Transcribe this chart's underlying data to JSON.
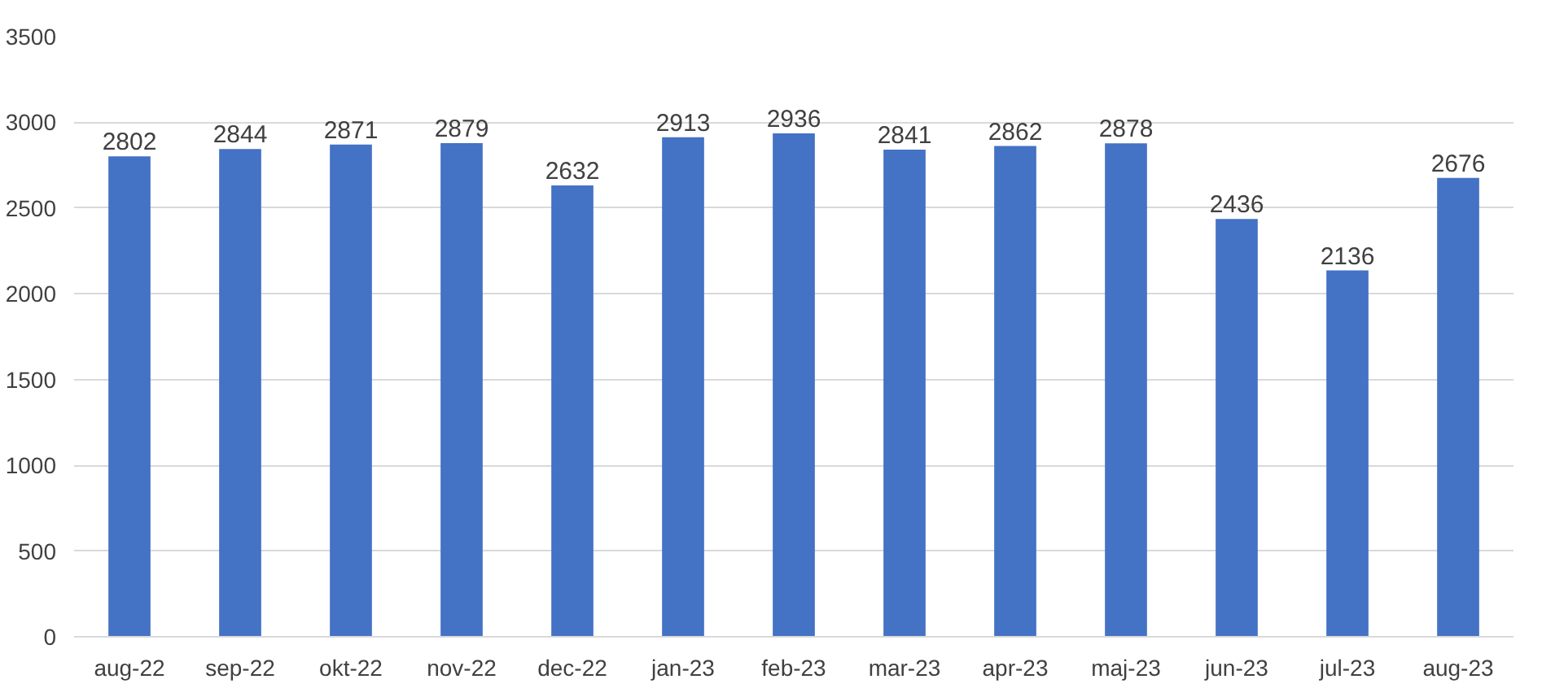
{
  "chart_data": {
    "type": "bar",
    "categories": [
      "aug-22",
      "sep-22",
      "okt-22",
      "nov-22",
      "dec-22",
      "jan-23",
      "feb-23",
      "mar-23",
      "apr-23",
      "maj-23",
      "jun-23",
      "jul-23",
      "aug-23"
    ],
    "values": [
      2802,
      2844,
      2871,
      2879,
      2632,
      2913,
      2936,
      2841,
      2862,
      2878,
      2436,
      2136,
      2676
    ],
    "color": "#4472c4",
    "ylim": [
      0,
      3500
    ],
    "yticks": [
      0,
      500,
      1000,
      1500,
      2000,
      2500,
      3000,
      3500
    ],
    "grid": "y",
    "data_labels": true
  }
}
